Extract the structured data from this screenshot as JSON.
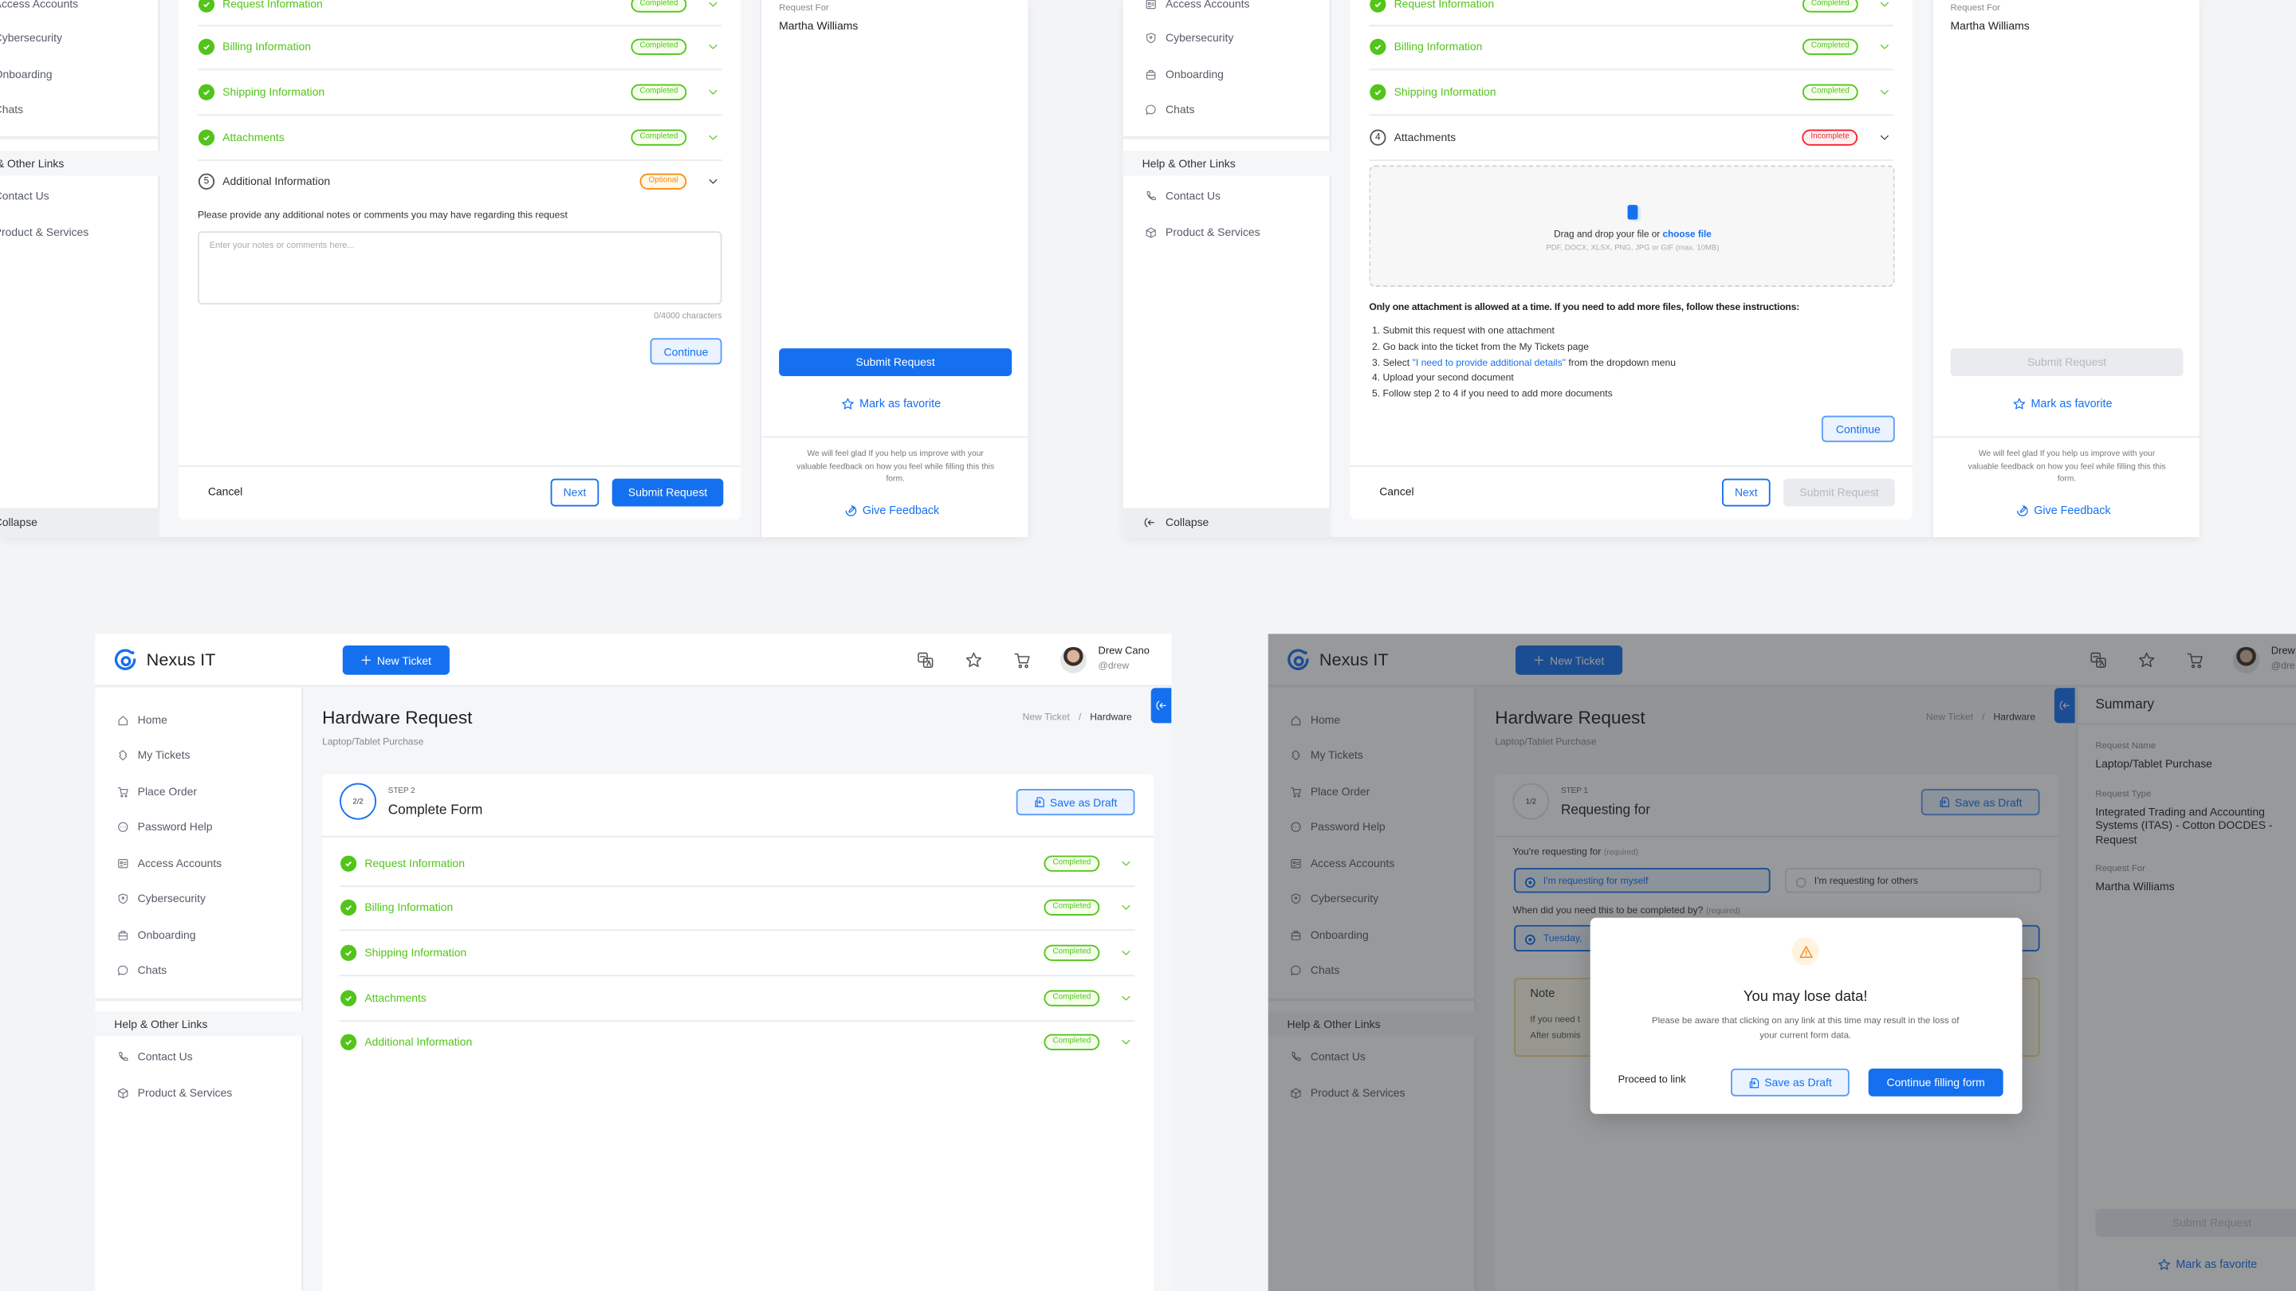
{
  "brand": {
    "name": "Nexus IT",
    "new_ticket": "New Ticket",
    "user_name": "Drew Cano",
    "user_handle": "@drew",
    "user_name_clipped": "Drew",
    "user_handle_clipped": "@dre"
  },
  "topbar_icons": [
    "translate-icon",
    "star-icon",
    "cart-icon"
  ],
  "sidebar": {
    "main_items": [
      {
        "label": "Home",
        "icon": "home-icon"
      },
      {
        "label": "My Tickets",
        "icon": "ticket-icon"
      },
      {
        "label": "Place Order",
        "icon": "cart-icon"
      },
      {
        "label": "Password Help",
        "icon": "password-icon"
      },
      {
        "label": "Access Accounts",
        "icon": "id-card-icon"
      },
      {
        "label": "Cybersecurity",
        "icon": "shield-icon"
      },
      {
        "label": "Onboarding",
        "icon": "briefcase-icon"
      },
      {
        "label": "Chats",
        "icon": "chat-icon"
      }
    ],
    "help_header": "Help & Other Links",
    "help_items": [
      {
        "label": "Contact Us",
        "icon": "phone-icon"
      },
      {
        "label": "Product & Services",
        "icon": "box-icon"
      }
    ],
    "collapse": "Collapse"
  },
  "page": {
    "title": "Hardware Request",
    "subtitle": "Laptop/Tablet Purchase",
    "breadcrumb": [
      "New Ticket",
      "/",
      "Hardware"
    ]
  },
  "top_left_form": {
    "sections": [
      {
        "label": "Request Information",
        "status": "Completed"
      },
      {
        "label": "Billing Information",
        "status": "Completed"
      },
      {
        "label": "Shipping Information",
        "status": "Completed"
      },
      {
        "label": "Attachments",
        "status": "Completed"
      },
      {
        "label": "Additional Information",
        "status": "Optional",
        "step": "5"
      }
    ],
    "notes_prompt": "Please provide any additional notes or comments you may have regarding this request",
    "notes_placeholder": "Enter your notes or comments here...",
    "char_count": "0/4000 characters",
    "continue": "Continue",
    "cancel": "Cancel",
    "next": "Next",
    "submit": "Submit Request"
  },
  "top_right_form": {
    "sections": [
      {
        "label": "Request Information",
        "status": "Completed"
      },
      {
        "label": "Billing Information",
        "status": "Completed"
      },
      {
        "label": "Shipping Information",
        "status": "Completed"
      },
      {
        "label": "Attachments",
        "status": "Incomplete",
        "step": "4"
      }
    ],
    "dropzone": {
      "text": "Drag and drop your file or ",
      "link": "choose file",
      "formats": "PDF, DOCX, XLSX, PNG, JPG or GIF (max. 10MB)"
    },
    "instructions_title": "Only one attachment is allowed at a time. If you need to add more files, follow these instructions:",
    "instructions": [
      "1. Submit this request with one attachment",
      "2. Go back into the ticket from the My Tickets page",
      {
        "pre": "3. Select ",
        "link": "\"I need to provide additional details\"",
        "post": " from the dropdown menu"
      },
      "4. Upload your second document",
      "5. Follow step 2 to 4 if you need to add more documents"
    ],
    "continue": "Continue",
    "cancel": "Cancel",
    "next": "Next",
    "submit": "Submit Request"
  },
  "summary": {
    "title": "Summary",
    "request_name_label": "Request Name",
    "request_name": "Laptop/Tablet Purchase",
    "request_type_label": "Request Type",
    "request_type_lines": [
      "Integrated Trading and Accounting",
      "Systems (ITAS) - Cotton DOCDES -",
      "Request"
    ],
    "request_for_label": "Request For",
    "request_for": "Martha Williams",
    "submit": "Submit Request",
    "favorite": "Mark as favorite",
    "feedback_lines": [
      "We will feel glad If you help us improve with your",
      "valuable feedback on how you feel while filling this this",
      "form."
    ],
    "give_feedback": "Give Feedback"
  },
  "bottom_left": {
    "step": {
      "counter": "2/2",
      "label": "STEP 2",
      "title": "Complete Form"
    },
    "save_draft": "Save as Draft",
    "sections": [
      {
        "label": "Request Information",
        "status": "Completed"
      },
      {
        "label": "Billing Information",
        "status": "Completed"
      },
      {
        "label": "Shipping Information",
        "status": "Completed"
      },
      {
        "label": "Attachments",
        "status": "Completed"
      },
      {
        "label": "Additional Information",
        "status": "Completed"
      }
    ]
  },
  "bottom_right": {
    "step": {
      "counter": "1/2",
      "label": "STEP 1",
      "title": "Requesting for"
    },
    "save_draft": "Save as Draft",
    "requesting_label": "You're requesting for",
    "required": "(required)",
    "options": [
      "I'm requesting for myself",
      "I'm requesting for others"
    ],
    "selected_option": 0,
    "completion_label": "When did you need this to be completed by?",
    "date_value": "Tuesday,",
    "note_title": "Note",
    "note_lines": [
      "If you need t",
      "After submis"
    ]
  },
  "modal": {
    "title": "You may lose data!",
    "message_lines": [
      "Please be aware that clicking on any link at this time may result in the loss of",
      "your current form data."
    ],
    "proceed": "Proceed to link",
    "save_draft": "Save as Draft",
    "continue": "Continue filling form",
    "icon": "warning-icon"
  },
  "colors": {
    "primary": "#1570ef",
    "success": "#52c41a",
    "warning": "#fa8c16",
    "danger": "#f5222d"
  }
}
